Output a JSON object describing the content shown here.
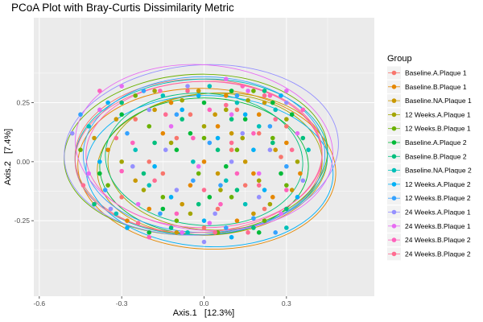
{
  "chart_data": {
    "type": "scatter",
    "title": "PCoA Plot with Bray-Curtis Dissimilarity Metric",
    "xlabel": "Axis.1   [12.3%]",
    "ylabel": "Axis.2   [7.4%]",
    "xlim": [
      -0.62,
      0.62
    ],
    "ylim": [
      -0.57,
      0.61
    ],
    "xticks": [
      -0.6,
      -0.3,
      0.0,
      0.3
    ],
    "xtick_labels": [
      "-0.6",
      "-0.3",
      "0.0",
      "0.3"
    ],
    "yticks": [
      -0.25,
      0.0,
      0.25
    ],
    "ytick_labels": [
      "-0.25",
      "0.00",
      "0.25"
    ],
    "grid": true,
    "panel_background": "#ebebeb",
    "legend_position": "right",
    "legend_title": "Group",
    "series": [
      {
        "name": "Baseline.A.Plaque 1",
        "color": "#F8766D",
        "ellipse": {
          "center": [
            -0.02,
            0.02
          ],
          "radii": [
            0.45,
            0.33
          ],
          "angle": 0
        },
        "points": [
          [
            -0.25,
            0.18
          ],
          [
            0.1,
            0.05
          ],
          [
            0.05,
            -0.2
          ],
          [
            -0.15,
            -0.05
          ],
          [
            0.2,
            0.12
          ],
          [
            -0.05,
            0.2
          ],
          [
            0.15,
            -0.1
          ],
          [
            -0.3,
            -0.15
          ],
          [
            0.28,
            0.02
          ],
          [
            0.0,
            -0.28
          ],
          [
            -0.1,
            0.1
          ],
          [
            0.12,
            0.22
          ],
          [
            -0.2,
            0.0
          ],
          [
            0.22,
            -0.2
          ],
          [
            0.3,
            0.15
          ]
        ]
      },
      {
        "name": "Baseline.B.Plaque 1",
        "color": "#E58700",
        "ellipse": {
          "center": [
            0.01,
            -0.03
          ],
          "radii": [
            0.47,
            0.34
          ],
          "angle": -3
        },
        "points": [
          [
            -0.2,
            -0.2
          ],
          [
            0.05,
            0.15
          ],
          [
            0.18,
            -0.05
          ],
          [
            -0.12,
            0.25
          ],
          [
            0.25,
            -0.15
          ],
          [
            -0.35,
            0.05
          ],
          [
            0.0,
            0.0
          ],
          [
            0.12,
            -0.25
          ],
          [
            -0.05,
            -0.1
          ],
          [
            0.3,
            0.08
          ],
          [
            -0.28,
            -0.25
          ],
          [
            0.08,
            0.28
          ],
          [
            -0.15,
            0.12
          ],
          [
            0.2,
            0.2
          ],
          [
            0.35,
            -0.05
          ]
        ]
      },
      {
        "name": "Baseline.NA.Plaque 1",
        "color": "#C99800",
        "ellipse": {
          "center": [
            0.03,
            -0.01
          ],
          "radii": [
            0.42,
            0.3
          ],
          "angle": 5
        },
        "points": [
          [
            -0.4,
            0.1
          ],
          [
            0.15,
            0.0
          ],
          [
            -0.08,
            -0.18
          ],
          [
            0.22,
            0.25
          ],
          [
            -0.18,
            0.22
          ],
          [
            0.05,
            -0.05
          ],
          [
            0.32,
            -0.12
          ],
          [
            -0.25,
            -0.08
          ],
          [
            0.1,
            0.12
          ],
          [
            -0.02,
            0.3
          ],
          [
            0.18,
            -0.22
          ],
          [
            -0.32,
            0.18
          ],
          [
            0.26,
            0.05
          ],
          [
            -0.1,
            -0.3
          ],
          [
            0.04,
            0.2
          ]
        ]
      },
      {
        "name": "12 Weeks.A.Plaque 1",
        "color": "#A3A500",
        "ellipse": {
          "center": [
            0.04,
            0.0
          ],
          "radii": [
            0.39,
            0.29
          ],
          "angle": 0
        },
        "points": [
          [
            -0.12,
            0.08
          ],
          [
            0.2,
            -0.08
          ],
          [
            0.08,
            0.22
          ],
          [
            -0.22,
            -0.12
          ],
          [
            0.3,
            0.18
          ],
          [
            -0.05,
            -0.22
          ],
          [
            0.14,
            0.1
          ],
          [
            -0.3,
            0.0
          ],
          [
            0.24,
            -0.18
          ],
          [
            0.0,
            0.15
          ],
          [
            -0.18,
            0.3
          ],
          [
            0.34,
            0.0
          ],
          [
            0.06,
            -0.12
          ],
          [
            -0.08,
            0.26
          ],
          [
            0.16,
            0.26
          ]
        ]
      },
      {
        "name": "12 Weeks.B.Plaque 1",
        "color": "#6BB100",
        "ellipse": {
          "center": [
            -0.03,
            0.03
          ],
          "radii": [
            0.48,
            0.34
          ],
          "angle": 3
        },
        "points": [
          [
            -0.45,
            0.05
          ],
          [
            0.0,
            0.1
          ],
          [
            0.1,
            -0.15
          ],
          [
            -0.2,
            0.15
          ],
          [
            0.25,
            0.1
          ],
          [
            -0.1,
            -0.25
          ],
          [
            0.18,
            0.3
          ],
          [
            -0.35,
            -0.1
          ],
          [
            0.05,
            -0.3
          ],
          [
            0.3,
            -0.1
          ],
          [
            -0.25,
            0.28
          ],
          [
            0.12,
            0.05
          ],
          [
            -0.02,
            -0.05
          ],
          [
            0.22,
            -0.25
          ],
          [
            -0.15,
            -0.15
          ]
        ]
      },
      {
        "name": "Baseline.A.Plaque 2",
        "color": "#00BA38",
        "ellipse": {
          "center": [
            0.0,
            -0.02
          ],
          "radii": [
            0.38,
            0.29
          ],
          "angle": 0
        },
        "points": [
          [
            -0.3,
            0.2
          ],
          [
            0.15,
            0.18
          ],
          [
            0.02,
            -0.15
          ],
          [
            -0.1,
            0.05
          ],
          [
            0.28,
            -0.05
          ],
          [
            -0.2,
            -0.3
          ],
          [
            0.1,
            0.3
          ],
          [
            -0.38,
            -0.05
          ],
          [
            0.2,
            -0.3
          ],
          [
            0.0,
            0.25
          ],
          [
            -0.15,
            -0.2
          ],
          [
            0.32,
            0.2
          ],
          [
            0.08,
            -0.02
          ],
          [
            -0.05,
            0.12
          ],
          [
            0.25,
            0.25
          ]
        ]
      },
      {
        "name": "Baseline.B.Plaque 2",
        "color": "#00BF7D",
        "ellipse": {
          "center": [
            0.0,
            0.01
          ],
          "radii": [
            0.36,
            0.28
          ],
          "angle": -4
        },
        "points": [
          [
            -0.22,
            -0.05
          ],
          [
            0.12,
            -0.12
          ],
          [
            -0.08,
            0.18
          ],
          [
            0.25,
            0.08
          ],
          [
            -0.3,
            0.25
          ],
          [
            0.05,
            0.05
          ],
          [
            0.18,
            -0.28
          ],
          [
            -0.12,
            -0.28
          ],
          [
            0.36,
            0.1
          ],
          [
            -0.02,
            -0.18
          ],
          [
            0.22,
            0.3
          ],
          [
            -0.4,
            -0.18
          ],
          [
            0.1,
            0.18
          ],
          [
            -0.18,
            0.08
          ],
          [
            0.3,
            -0.2
          ]
        ]
      },
      {
        "name": "Baseline.NA.Plaque 2",
        "color": "#00C0B8",
        "ellipse": {
          "center": [
            -0.01,
            0.02
          ],
          "radii": [
            0.46,
            0.33
          ],
          "angle": 2
        },
        "points": [
          [
            -0.42,
            0.15
          ],
          [
            0.08,
            -0.08
          ],
          [
            -0.06,
            -0.3
          ],
          [
            0.2,
            0.15
          ],
          [
            -0.25,
            0.05
          ],
          [
            0.3,
            -0.28
          ],
          [
            0.02,
            0.32
          ],
          [
            -0.15,
            0.28
          ],
          [
            0.15,
            -0.18
          ],
          [
            -0.32,
            -0.22
          ],
          [
            0.26,
            0.22
          ],
          [
            -0.04,
            0.0
          ],
          [
            0.12,
            0.25
          ],
          [
            -0.2,
            -0.1
          ],
          [
            0.38,
            0.05
          ]
        ]
      },
      {
        "name": "12 Weeks.A.Plaque 2",
        "color": "#00B0F6",
        "ellipse": {
          "center": [
            0.02,
            -0.04
          ],
          "radii": [
            0.45,
            0.32
          ],
          "angle": -2
        },
        "points": [
          [
            -0.35,
            0.25
          ],
          [
            0.18,
            0.05
          ],
          [
            0.0,
            -0.25
          ],
          [
            -0.18,
            -0.02
          ],
          [
            0.28,
            0.28
          ],
          [
            -0.08,
            0.22
          ],
          [
            0.1,
            -0.32
          ],
          [
            -0.28,
            -0.28
          ],
          [
            0.22,
            -0.12
          ],
          [
            0.05,
            0.1
          ],
          [
            -0.12,
            -0.15
          ],
          [
            0.34,
            -0.15
          ],
          [
            -0.02,
            0.28
          ],
          [
            0.15,
            0.2
          ],
          [
            -0.38,
            0.0
          ]
        ]
      },
      {
        "name": "12 Weeks.B.Plaque 2",
        "color": "#35A2FF",
        "ellipse": {
          "center": [
            0.0,
            0.03
          ],
          "radii": [
            0.44,
            0.33
          ],
          "angle": 0
        },
        "points": [
          [
            -0.28,
            0.12
          ],
          [
            0.06,
            -0.1
          ],
          [
            0.24,
            0.15
          ],
          [
            -0.16,
            -0.22
          ],
          [
            0.12,
            0.28
          ],
          [
            -0.04,
            -0.08
          ],
          [
            0.3,
            -0.02
          ],
          [
            -0.36,
            -0.12
          ],
          [
            0.18,
            -0.24
          ],
          [
            -0.1,
            0.2
          ],
          [
            0.02,
            0.08
          ],
          [
            0.26,
            -0.3
          ],
          [
            -0.22,
            0.3
          ],
          [
            0.08,
            -0.28
          ],
          [
            -0.45,
            0.2
          ]
        ]
      },
      {
        "name": "24 Weeks.A.Plaque 1",
        "color": "#9590FF",
        "ellipse": {
          "center": [
            -0.01,
            0.05
          ],
          "radii": [
            0.5,
            0.36
          ],
          "angle": 4
        },
        "points": [
          [
            -0.48,
            0.12
          ],
          [
            0.14,
            0.12
          ],
          [
            -0.1,
            -0.12
          ],
          [
            0.3,
            0.25
          ],
          [
            -0.2,
            0.22
          ],
          [
            0.04,
            -0.22
          ],
          [
            0.2,
            -0.15
          ],
          [
            -0.34,
            -0.2
          ],
          [
            0.36,
            -0.08
          ],
          [
            -0.06,
            0.32
          ],
          [
            0.1,
            0.0
          ],
          [
            -0.26,
            -0.02
          ],
          [
            0.24,
            0.05
          ],
          [
            0.0,
            -0.34
          ],
          [
            -0.14,
            0.05
          ]
        ]
      },
      {
        "name": "24 Weeks.B.Plaque 1",
        "color": "#E76BF3",
        "ellipse": {
          "center": [
            0.0,
            0.06
          ],
          "radii": [
            0.47,
            0.35
          ],
          "angle": -5
        },
        "points": [
          [
            -0.38,
            0.22
          ],
          [
            0.1,
            0.2
          ],
          [
            -0.02,
            -0.02
          ],
          [
            0.28,
            -0.22
          ],
          [
            -0.24,
            -0.18
          ],
          [
            0.16,
            0.3
          ],
          [
            -0.12,
            0.15
          ],
          [
            0.34,
            0.12
          ],
          [
            0.02,
            -0.26
          ],
          [
            -0.3,
            0.32
          ],
          [
            0.2,
            -0.05
          ],
          [
            -0.08,
            -0.3
          ],
          [
            0.08,
            0.35
          ],
          [
            -0.42,
            -0.05
          ],
          [
            0.3,
            0.3
          ]
        ]
      },
      {
        "name": "24 Weeks.B.Plaque 2",
        "color": "#FF62BC",
        "ellipse": {
          "center": [
            0.0,
            0.03
          ],
          "radii": [
            0.43,
            0.31
          ],
          "angle": 0
        },
        "points": [
          [
            -0.16,
            0.3
          ],
          [
            0.12,
            -0.05
          ],
          [
            0.02,
            0.22
          ],
          [
            -0.26,
            0.08
          ],
          [
            0.24,
            0.28
          ],
          [
            -0.1,
            -0.22
          ],
          [
            0.18,
            0.12
          ],
          [
            -0.38,
            0.3
          ],
          [
            0.3,
            -0.12
          ],
          [
            0.06,
            -0.18
          ],
          [
            -0.2,
            -0.32
          ],
          [
            0.14,
            0.32
          ],
          [
            -0.04,
            0.1
          ],
          [
            0.36,
            0.22
          ],
          [
            -0.3,
            -0.04
          ]
        ]
      },
      {
        "name": "24 Weeks.B.Plaque 2",
        "color": "#FF6C91",
        "ellipse": {
          "center": [
            -0.02,
            0.02
          ],
          "radii": [
            0.45,
            0.32
          ],
          "angle": 3
        },
        "points": [
          [
            -0.24,
            -0.26
          ],
          [
            0.08,
            0.24
          ],
          [
            0.2,
            -0.1
          ],
          [
            -0.14,
            0.2
          ],
          [
            0.32,
            0.05
          ],
          [
            -0.32,
            0.1
          ],
          [
            0.0,
            -0.12
          ],
          [
            0.16,
            -0.3
          ],
          [
            -0.06,
            0.3
          ],
          [
            0.26,
            0.18
          ],
          [
            -0.44,
            -0.1
          ],
          [
            0.1,
            0.08
          ],
          [
            -0.18,
            -0.08
          ],
          [
            0.22,
            0.28
          ],
          [
            0.04,
            -0.3
          ]
        ]
      }
    ]
  }
}
